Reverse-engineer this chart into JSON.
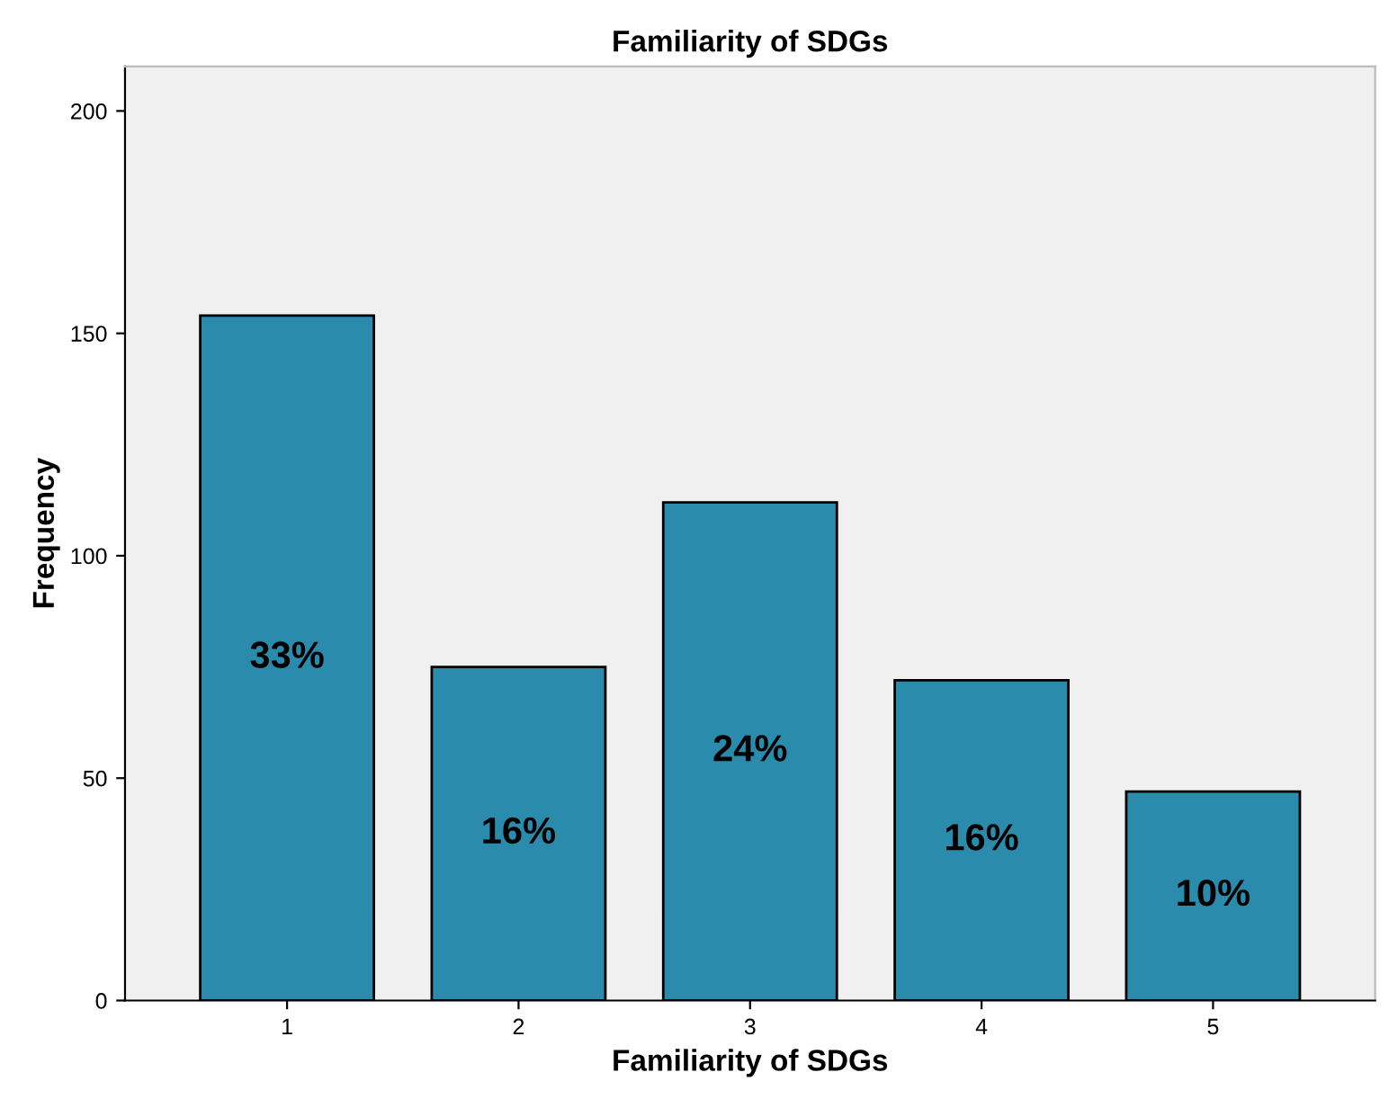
{
  "chart_data": {
    "type": "bar",
    "title": "Familiarity of SDGs",
    "xlabel": "Familiarity of SDGs",
    "ylabel": "Frequency",
    "categories": [
      "1",
      "2",
      "3",
      "4",
      "5"
    ],
    "values": [
      154,
      75,
      112,
      72,
      47
    ],
    "annotations": [
      "33%",
      "16%",
      "24%",
      "16%",
      "10%"
    ],
    "color": "#2a8bac",
    "ylim": [
      0,
      210
    ],
    "yticks": [
      0,
      50,
      100,
      150,
      200
    ],
    "grid": false,
    "legend": false
  }
}
